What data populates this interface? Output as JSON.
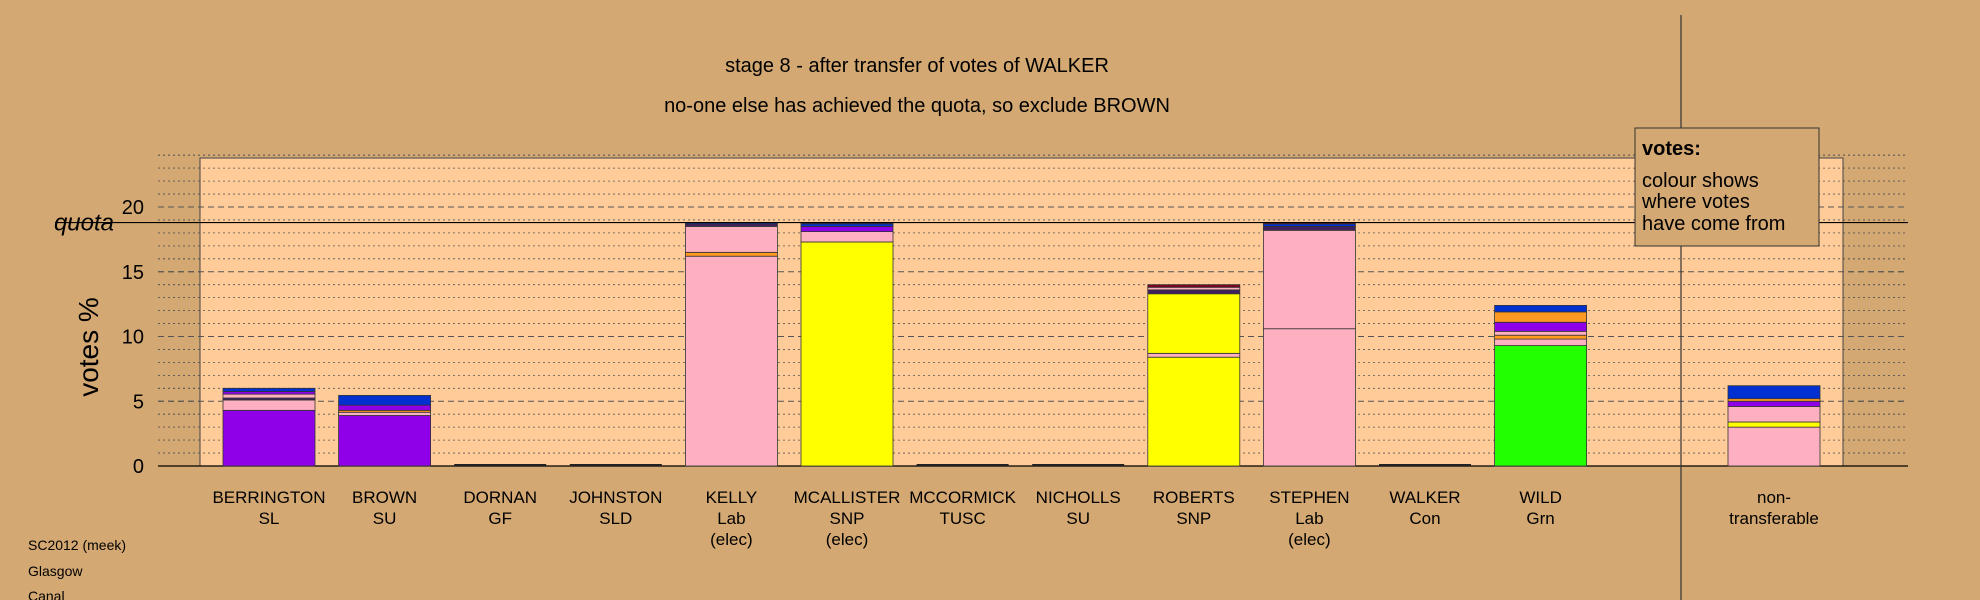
{
  "chart_data": {
    "type": "bar",
    "stacked": true,
    "title": "stage 8 - after transfer of votes of WALKER",
    "subtitle": "no-one else has achieved the quota, so exclude BROWN",
    "ylabel": "votes %",
    "ylim": [
      0,
      24
    ],
    "yticks": [
      0,
      5,
      10,
      15,
      20
    ],
    "quota": 18.8,
    "quota_label": "quota",
    "grid": true,
    "legend": {
      "title": "votes:",
      "lines": [
        "colour shows",
        "where votes",
        "have come from"
      ],
      "position": "top-right"
    },
    "footer": [
      "SC2012 (meek)",
      "Glasgow",
      "Canal"
    ],
    "colors": {
      "SL": "#8F00E8",
      "Lab": "#FFB0C0",
      "SNP": "#FFFF00",
      "Grn": "#22FF00",
      "SU": "#1010EE",
      "Con": "#0030D0",
      "GF": "#FF9922",
      "TUSC": "#800020",
      "SLD": "#FFA500",
      "Other": "#402060",
      "plot_bg": "#FFCC99",
      "page_bg": "#D4A872"
    },
    "categories": [
      {
        "name": "BERRINGTON",
        "party": "SL",
        "note": ""
      },
      {
        "name": "BROWN",
        "party": "SU",
        "note": ""
      },
      {
        "name": "DORNAN",
        "party": "GF",
        "note": ""
      },
      {
        "name": "JOHNSTON",
        "party": "SLD",
        "note": ""
      },
      {
        "name": "KELLY",
        "party": "Lab",
        "note": "(elec)"
      },
      {
        "name": "MCALLISTER",
        "party": "SNP",
        "note": "(elec)"
      },
      {
        "name": "MCCORMICK",
        "party": "TUSC",
        "note": ""
      },
      {
        "name": "NICHOLLS",
        "party": "SU",
        "note": ""
      },
      {
        "name": "ROBERTS",
        "party": "SNP",
        "note": ""
      },
      {
        "name": "STEPHEN",
        "party": "Lab",
        "note": "(elec)"
      },
      {
        "name": "WALKER",
        "party": "Con",
        "note": ""
      },
      {
        "name": "WILD",
        "party": "Grn",
        "note": ""
      }
    ],
    "nontransferable": {
      "name": "non-",
      "party": "transferable",
      "note": ""
    },
    "segments": [
      [
        {
          "c": "SL",
          "v": 4.3
        },
        {
          "c": "Lab",
          "v": 0.8
        },
        {
          "c": "Other",
          "v": 0.15
        },
        {
          "c": "Lab",
          "v": 0.3
        },
        {
          "c": "SL",
          "v": 0.2
        },
        {
          "c": "Con",
          "v": 0.25
        }
      ],
      [
        {
          "c": "SL",
          "v": 3.9
        },
        {
          "c": "Lab",
          "v": 0.25
        },
        {
          "c": "GF",
          "v": 0.15
        },
        {
          "c": "SL",
          "v": 0.4
        },
        {
          "c": "Con",
          "v": 0.75
        }
      ],
      [],
      [],
      [
        {
          "c": "Lab",
          "v": 16.2
        },
        {
          "c": "GF",
          "v": 0.3
        },
        {
          "c": "Lab",
          "v": 2.0
        },
        {
          "c": "Other",
          "v": 0.2
        },
        {
          "c": "Con",
          "v": 0.1
        }
      ],
      [
        {
          "c": "SNP",
          "v": 17.3
        },
        {
          "c": "Lab",
          "v": 0.8
        },
        {
          "c": "SL",
          "v": 0.4
        },
        {
          "c": "Con",
          "v": 0.2
        },
        {
          "c": "Other",
          "v": 0.1
        }
      ],
      [],
      [],
      [
        {
          "c": "SNP",
          "v": 8.4
        },
        {
          "c": "Lab",
          "v": 0.3
        },
        {
          "c": "SNP",
          "v": 4.6
        },
        {
          "c": "Other",
          "v": 0.3
        },
        {
          "c": "Lab",
          "v": 0.2
        },
        {
          "c": "TUSC",
          "v": 0.2
        }
      ],
      [
        {
          "c": "Lab",
          "v": 10.6
        },
        {
          "c": "Lab",
          "v": 7.6
        },
        {
          "c": "Other",
          "v": 0.3
        },
        {
          "c": "Con",
          "v": 0.2
        },
        {
          "c": "TUSC",
          "v": 0.1
        }
      ],
      [],
      [
        {
          "c": "Grn",
          "v": 9.3
        },
        {
          "c": "Lab",
          "v": 0.5
        },
        {
          "c": "GF",
          "v": 0.3
        },
        {
          "c": "Lab",
          "v": 0.3
        },
        {
          "c": "SL",
          "v": 0.7
        },
        {
          "c": "GF",
          "v": 0.8
        },
        {
          "c": "Con",
          "v": 0.5
        }
      ],
      [
        {
          "c": "Lab",
          "v": 3.0
        },
        {
          "c": "SNP",
          "v": 0.4
        },
        {
          "c": "Lab",
          "v": 1.2
        },
        {
          "c": "SL",
          "v": 0.4
        },
        {
          "c": "GF",
          "v": 0.2
        },
        {
          "c": "Con",
          "v": 1.0
        }
      ]
    ]
  }
}
